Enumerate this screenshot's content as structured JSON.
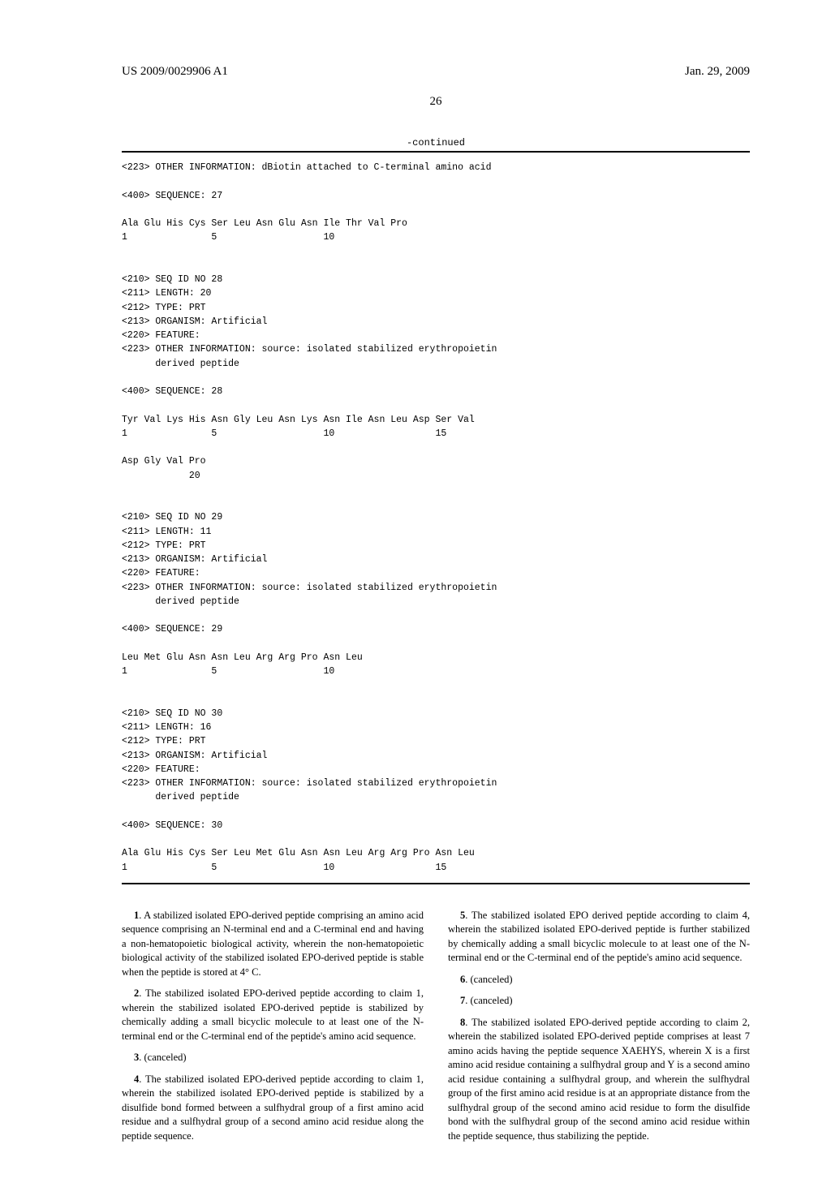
{
  "header": {
    "pub_number": "US 2009/0029906 A1",
    "pub_date": "Jan. 29, 2009"
  },
  "page_number": "26",
  "continued_label": "-continued",
  "seq_listing": "<223> OTHER INFORMATION: dBiotin attached to C-terminal amino acid\n\n<400> SEQUENCE: 27\n\nAla Glu His Cys Ser Leu Asn Glu Asn Ile Thr Val Pro\n1               5                   10\n\n\n<210> SEQ ID NO 28\n<211> LENGTH: 20\n<212> TYPE: PRT\n<213> ORGANISM: Artificial\n<220> FEATURE:\n<223> OTHER INFORMATION: source: isolated stabilized erythropoietin\n      derived peptide\n\n<400> SEQUENCE: 28\n\nTyr Val Lys His Asn Gly Leu Asn Lys Asn Ile Asn Leu Asp Ser Val\n1               5                   10                  15\n\nAsp Gly Val Pro\n            20\n\n\n<210> SEQ ID NO 29\n<211> LENGTH: 11\n<212> TYPE: PRT\n<213> ORGANISM: Artificial\n<220> FEATURE:\n<223> OTHER INFORMATION: source: isolated stabilized erythropoietin\n      derived peptide\n\n<400> SEQUENCE: 29\n\nLeu Met Glu Asn Asn Leu Arg Arg Pro Asn Leu\n1               5                   10\n\n\n<210> SEQ ID NO 30\n<211> LENGTH: 16\n<212> TYPE: PRT\n<213> ORGANISM: Artificial\n<220> FEATURE:\n<223> OTHER INFORMATION: source: isolated stabilized erythropoietin\n      derived peptide\n\n<400> SEQUENCE: 30\n\nAla Glu His Cys Ser Leu Met Glu Asn Asn Leu Arg Arg Pro Asn Leu\n1               5                   10                  15",
  "claims": {
    "left": [
      {
        "num": "1",
        "text": ". A stabilized isolated EPO-derived peptide comprising an amino acid sequence comprising an N-terminal end and a C-terminal end and having a non-hematopoietic biological activity, wherein the non-hematopoietic biological activity of the stabilized isolated EPO-derived peptide is stable when the peptide is stored at 4° C."
      },
      {
        "num": "2",
        "text": ". The stabilized isolated EPO-derived peptide according to claim 1, wherein the stabilized isolated EPO-derived peptide is stabilized by chemically adding a small bicyclic molecule to at least one of the N-terminal end or the C-terminal end of the peptide's amino acid sequence."
      },
      {
        "num": "3",
        "text": ". (canceled)"
      },
      {
        "num": "4",
        "text": ". The stabilized isolated EPO-derived peptide according to claim 1, wherein the stabilized isolated EPO-derived peptide is stabilized by a disulfide bond formed between a sulfhydral group of a first amino acid residue and a sulfhydral group of a second amino acid residue along the peptide sequence."
      }
    ],
    "right": [
      {
        "num": "5",
        "text": ". The stabilized isolated EPO derived peptide according to claim 4, wherein the stabilized isolated EPO-derived peptide is further stabilized by chemically adding a small bicyclic molecule to at least one of the N-terminal end or the C-terminal end of the peptide's amino acid sequence."
      },
      {
        "num": "6",
        "text": ". (canceled)"
      },
      {
        "num": "7",
        "text": ". (canceled)"
      },
      {
        "num": "8",
        "text": ". The stabilized isolated EPO-derived peptide according to claim 2, wherein the stabilized isolated EPO-derived peptide comprises at least 7 amino acids having the peptide sequence XAEHYS, wherein X is a first amino acid residue containing a sulfhydral group and Y is a second amino acid residue containing a sulfhydral group, and wherein the sulfhydral group of the first amino acid residue is at an appropriate distance from the sulfhydral group of the second amino acid residue to form the disulfide bond with the sulfhydral group of the second amino acid residue within the peptide sequence, thus stabilizing the peptide."
      }
    ]
  }
}
